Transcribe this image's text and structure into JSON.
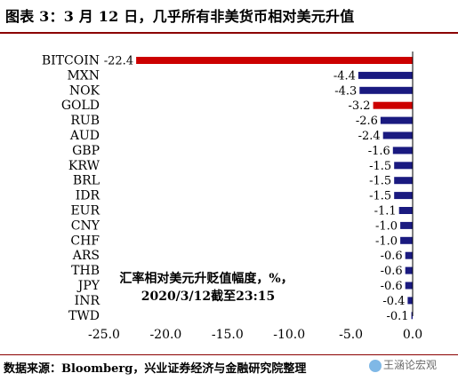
{
  "title": "图表 3：3 月 12 日，几乎所有非美货币相对美元升值",
  "source": "数据来源：Bloomberg，兴业证券经济与金融研究院整理",
  "watermark": "王涵论宏观",
  "colors": {
    "title_rule": "#8b0000",
    "bar_default": "#1a1a80",
    "bar_highlight": "#cc0000"
  },
  "chart_data": {
    "type": "bar",
    "orientation": "horizontal",
    "categories": [
      "BITCOIN",
      "MXN",
      "NOK",
      "GOLD",
      "RUB",
      "AUD",
      "GBP",
      "KRW",
      "BRL",
      "IDR",
      "EUR",
      "CNY",
      "CHF",
      "ARS",
      "THB",
      "JPY",
      "INR",
      "TWD"
    ],
    "values": [
      -22.4,
      -4.4,
      -4.3,
      -3.2,
      -2.6,
      -2.4,
      -1.6,
      -1.5,
      -1.5,
      -1.5,
      -1.1,
      -1.0,
      -1.0,
      -0.6,
      -0.6,
      -0.6,
      -0.4,
      -0.1
    ],
    "value_labels": [
      "-22.4",
      "-4.4",
      "-4.3",
      "-3.2",
      "-2.6",
      "-2.4",
      "-1.6",
      "-1.5",
      "-1.5",
      "-1.5",
      "-1.1",
      "-1.0",
      "-1.0",
      "-0.6",
      "-0.6",
      "-0.6",
      "-0.4",
      "-0.1"
    ],
    "highlight": [
      "BITCOIN",
      "GOLD"
    ],
    "xlim": [
      -25,
      0
    ],
    "xticks": [
      -25,
      -20,
      -15,
      -10,
      -5,
      0
    ],
    "xtick_labels": [
      "-25.0",
      "-20.0",
      "-15.0",
      "-10.0",
      "-5.0",
      "0.0"
    ],
    "annotation": [
      "汇率相对美元升贬值幅度，%，",
      "2020/3/12截至23:15"
    ],
    "grid": false,
    "legend": "none"
  }
}
